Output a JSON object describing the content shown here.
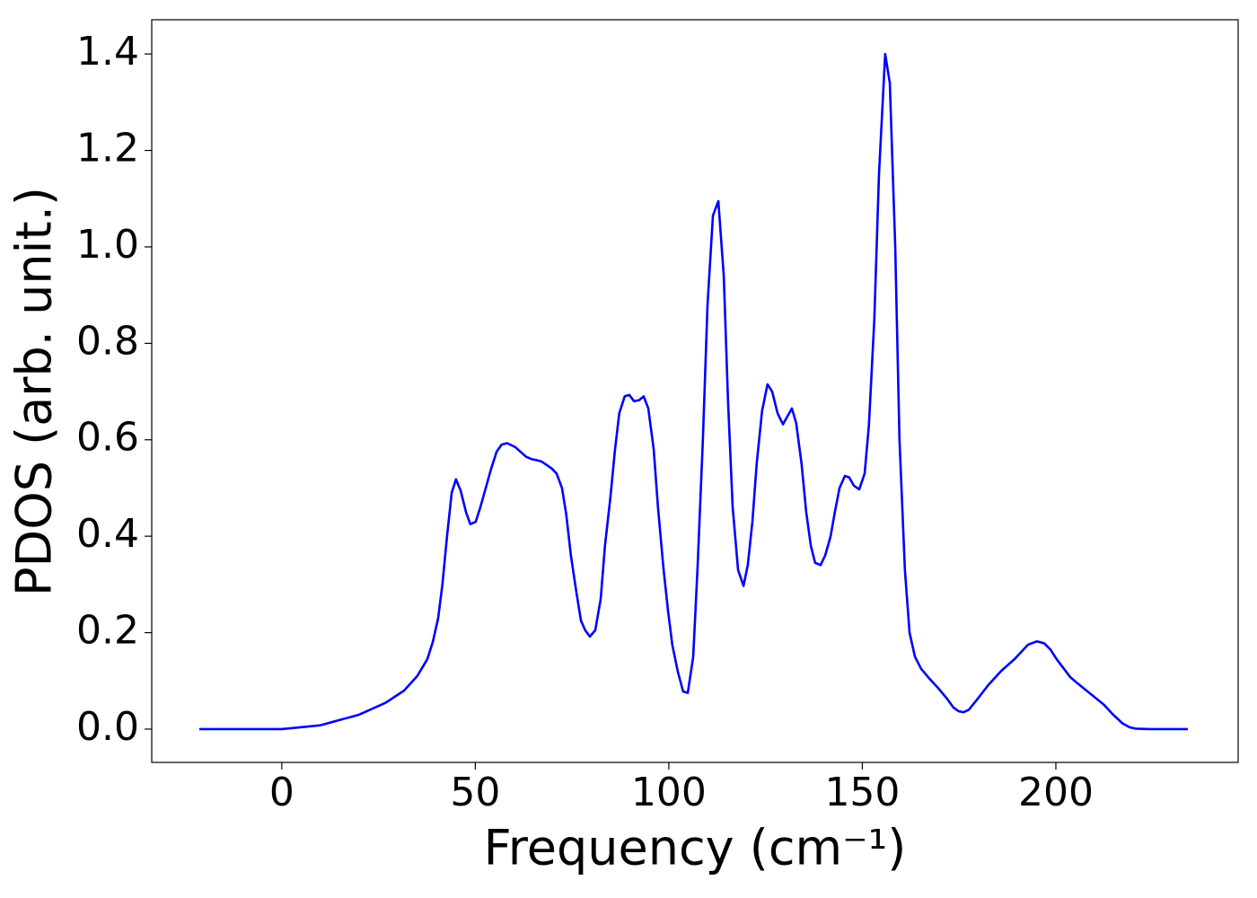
{
  "chart_data": {
    "type": "line",
    "xlabel": "Frequency (cm⁻¹)",
    "ylabel": "PDOS (arb. unit.)",
    "xlim": [
      -33.6,
      247.1
    ],
    "ylim": [
      -0.069,
      1.471
    ],
    "xticks": [
      0,
      50,
      100,
      150,
      200
    ],
    "yticks": [
      {
        "value": 0,
        "label": "0.0"
      },
      0.2,
      0.4,
      0.6,
      0.8,
      {
        "value": 1,
        "label": "1.0"
      },
      1.2,
      1.4
    ],
    "grid": false,
    "x": [
      -21.3,
      0,
      10.0,
      20.0,
      26.9,
      31.6,
      35.0,
      37.6,
      39.0,
      40.4,
      41.5,
      42.7,
      43.9,
      45.0,
      46.2,
      47.6,
      48.7,
      50.1,
      51.3,
      52.7,
      54.1,
      55.5,
      56.8,
      58.2,
      60.3,
      61.7,
      63.1,
      64.5,
      65.7,
      67.1,
      68.4,
      69.8,
      71.0,
      72.4,
      73.5,
      74.7,
      76.1,
      77.3,
      78.4,
      79.6,
      81.0,
      82.4,
      83.5,
      84.9,
      86.1,
      87.2,
      88.6,
      89.8,
      91.0,
      92.3,
      93.5,
      94.7,
      96.1,
      97.2,
      98.6,
      99.8,
      100.9,
      102.3,
      103.7,
      104.9,
      106.3,
      107.4,
      108.8,
      110.0,
      111.4,
      112.8,
      114.2,
      115.3,
      116.5,
      117.9,
      119.3,
      120.4,
      121.6,
      122.7,
      124.1,
      125.5,
      126.7,
      128.1,
      129.5,
      130.6,
      131.8,
      132.9,
      134.3,
      135.5,
      136.7,
      137.8,
      139.2,
      140.4,
      141.8,
      142.9,
      144.1,
      145.5,
      146.6,
      147.8,
      149.2,
      150.6,
      151.7,
      153.1,
      154.3,
      155.9,
      157.1,
      158.5,
      159.6,
      161.0,
      162.2,
      163.6,
      165.2,
      167.3,
      169.6,
      171.9,
      173.5,
      174.9,
      176.1,
      177.5,
      180.0,
      182.4,
      185.8,
      189.3,
      192.8,
      195.1,
      197.0,
      198.6,
      200.2,
      202.1,
      203.7,
      205.6,
      207.9,
      210.2,
      212.5,
      214.8,
      217.2,
      219.0,
      220.6,
      224.1,
      234.1
    ],
    "series": [
      {
        "name": "PDOS",
        "color": "#0000ff",
        "values": [
          0,
          0,
          0.008,
          0.03,
          0.055,
          0.08,
          0.11,
          0.145,
          0.18,
          0.23,
          0.3,
          0.4,
          0.49,
          0.518,
          0.495,
          0.45,
          0.425,
          0.43,
          0.46,
          0.5,
          0.54,
          0.575,
          0.59,
          0.593,
          0.585,
          0.575,
          0.565,
          0.56,
          0.558,
          0.555,
          0.548,
          0.54,
          0.53,
          0.5,
          0.445,
          0.36,
          0.285,
          0.225,
          0.205,
          0.192,
          0.205,
          0.27,
          0.38,
          0.48,
          0.58,
          0.655,
          0.69,
          0.693,
          0.68,
          0.682,
          0.69,
          0.665,
          0.58,
          0.46,
          0.335,
          0.245,
          0.175,
          0.12,
          0.078,
          0.075,
          0.15,
          0.33,
          0.6,
          0.88,
          1.065,
          1.095,
          0.94,
          0.68,
          0.46,
          0.33,
          0.297,
          0.34,
          0.43,
          0.55,
          0.66,
          0.715,
          0.7,
          0.655,
          0.632,
          0.648,
          0.665,
          0.635,
          0.55,
          0.45,
          0.38,
          0.345,
          0.34,
          0.36,
          0.4,
          0.45,
          0.5,
          0.525,
          0.522,
          0.505,
          0.497,
          0.53,
          0.63,
          0.85,
          1.15,
          1.4,
          1.34,
          1.0,
          0.6,
          0.33,
          0.2,
          0.15,
          0.125,
          0.105,
          0.085,
          0.063,
          0.045,
          0.037,
          0.035,
          0.04,
          0.065,
          0.09,
          0.12,
          0.145,
          0.175,
          0.182,
          0.178,
          0.165,
          0.145,
          0.125,
          0.108,
          0.095,
          0.08,
          0.065,
          0.05,
          0.03,
          0.012,
          0.004,
          0.001,
          0,
          0
        ]
      }
    ]
  }
}
